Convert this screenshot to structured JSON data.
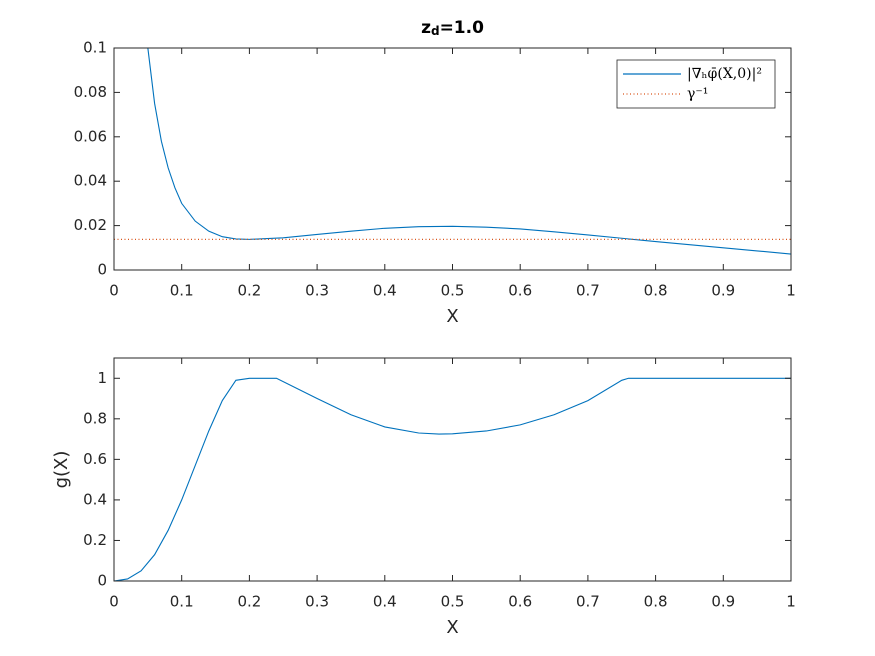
{
  "chart_data": [
    {
      "type": "line",
      "title": [
        "z",
        "d",
        "=1.0"
      ],
      "xlabel": "X",
      "xlim": [
        0,
        1
      ],
      "ylim": [
        0,
        0.1
      ],
      "xticks": [
        0,
        0.1,
        0.2,
        0.3,
        0.4,
        0.5,
        0.6,
        0.7,
        0.8,
        0.9,
        1
      ],
      "yticks": [
        0,
        0.02,
        0.04,
        0.06,
        0.08,
        0.1
      ],
      "legend": "upper right",
      "series": [
        {
          "name": "|∇ₕφ̄(X,0)|²",
          "color": "#0072bd",
          "style": "solid",
          "x": [
            0.05,
            0.06,
            0.07,
            0.08,
            0.09,
            0.1,
            0.12,
            0.14,
            0.16,
            0.18,
            0.2,
            0.25,
            0.3,
            0.35,
            0.4,
            0.45,
            0.5,
            0.55,
            0.6,
            0.65,
            0.7,
            0.75,
            0.8,
            0.85,
            0.9,
            0.95,
            1
          ],
          "values": [
            0.1,
            0.075,
            0.058,
            0.046,
            0.037,
            0.03,
            0.022,
            0.0175,
            0.015,
            0.014,
            0.0138,
            0.0145,
            0.016,
            0.0175,
            0.0188,
            0.0195,
            0.0197,
            0.0193,
            0.0185,
            0.0172,
            0.0158,
            0.0143,
            0.0128,
            0.0114,
            0.01,
            0.0086,
            0.0072
          ]
        },
        {
          "name": "γ⁻¹",
          "color": "#d95319",
          "style": "dotted",
          "x": [
            0,
            1
          ],
          "values": [
            0.0138,
            0.0138
          ]
        }
      ]
    },
    {
      "type": "line",
      "xlabel": "X",
      "ylabel": "g(X)",
      "xlim": [
        0,
        1
      ],
      "ylim": [
        0,
        1.1
      ],
      "xticks": [
        0,
        0.1,
        0.2,
        0.3,
        0.4,
        0.5,
        0.6,
        0.7,
        0.8,
        0.9,
        1
      ],
      "yticks": [
        0,
        0.2,
        0.4,
        0.6,
        0.8,
        1
      ],
      "series": [
        {
          "color": "#0072bd",
          "style": "solid",
          "x": [
            0,
            0.02,
            0.04,
            0.06,
            0.08,
            0.1,
            0.12,
            0.14,
            0.16,
            0.18,
            0.2,
            0.24,
            0.3,
            0.35,
            0.4,
            0.45,
            0.48,
            0.5,
            0.55,
            0.6,
            0.65,
            0.7,
            0.75,
            0.76,
            0.8,
            1
          ],
          "values": [
            0,
            0.01,
            0.05,
            0.13,
            0.25,
            0.4,
            0.57,
            0.74,
            0.89,
            0.99,
            1,
            1,
            0.9,
            0.82,
            0.76,
            0.73,
            0.725,
            0.726,
            0.74,
            0.77,
            0.82,
            0.89,
            0.99,
            1,
            1,
            1
          ]
        }
      ]
    }
  ]
}
